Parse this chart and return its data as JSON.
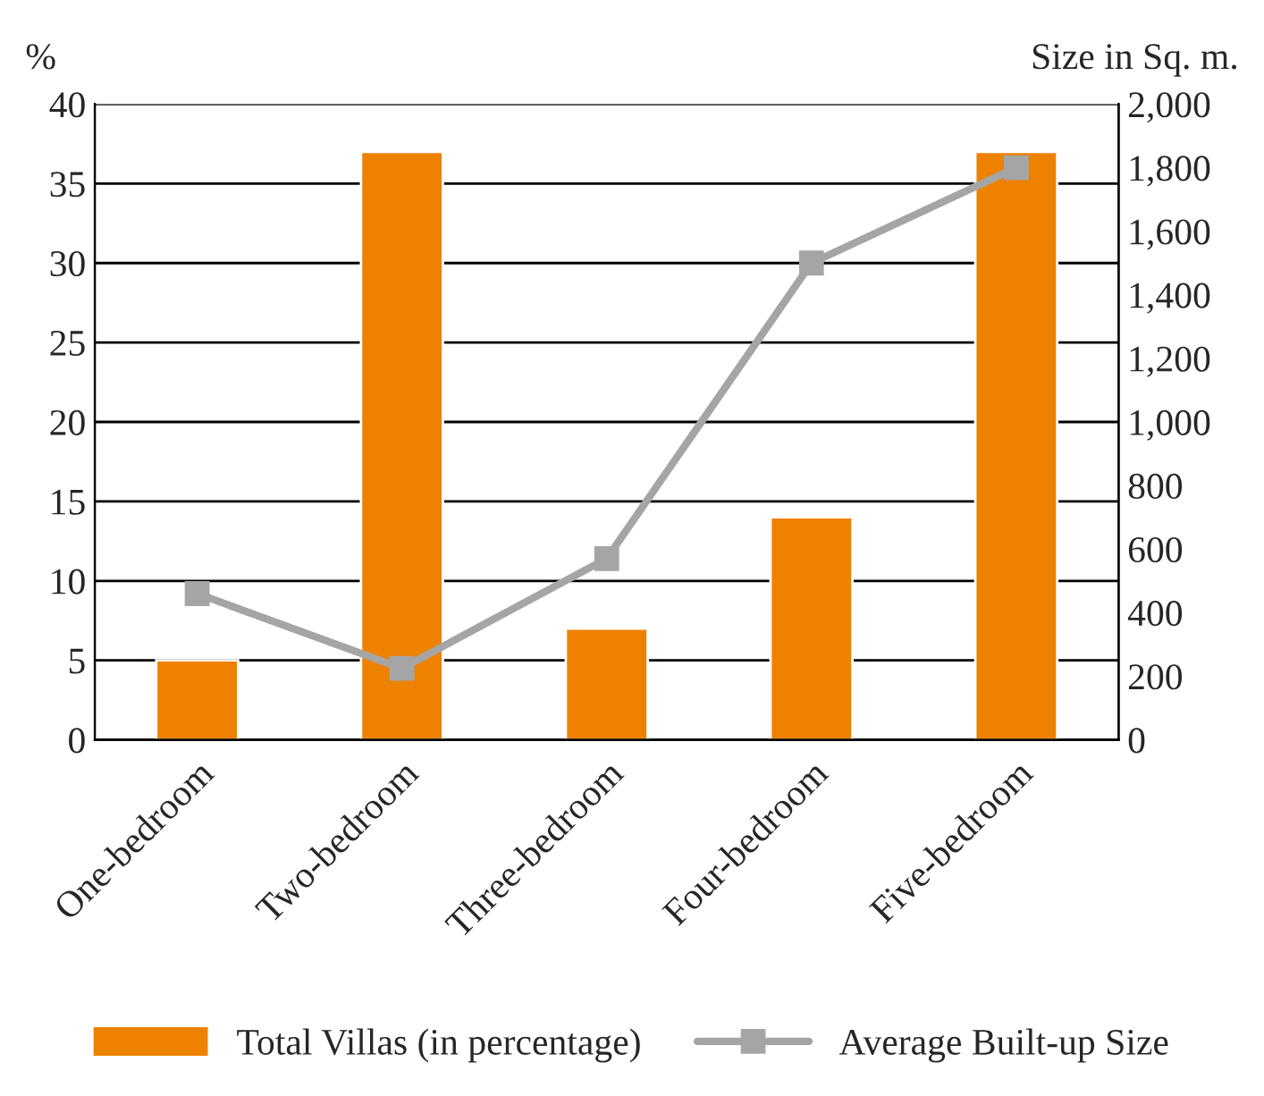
{
  "chart_data": {
    "type": "bar",
    "categories": [
      "One-bedroom",
      "Two-bedroom",
      "Three-bedroom",
      "Four-bedroom",
      "Five-bedroom"
    ],
    "ylabel": "%",
    "y2label": "Size in Sq. m.",
    "series": [
      {
        "name": "Total Villas (in percentage)",
        "color": "#ee8100",
        "values": [
          5,
          37,
          7,
          14,
          37
        ]
      },
      {
        "name": "Average Built-up Size",
        "type": "line",
        "axis": "y2",
        "color": "#a5a5a5",
        "marker": "square",
        "values": [
          460,
          225,
          570,
          1500,
          1800
        ]
      }
    ],
    "ylim": [
      0,
      40
    ],
    "yticks": [
      0,
      5,
      10,
      15,
      20,
      25,
      30,
      35,
      40
    ],
    "y2lim": [
      0,
      2000
    ],
    "y2ticks": [
      {
        "value": 0,
        "label": "0"
      },
      {
        "value": 200,
        "label": "200"
      },
      {
        "value": 400,
        "label": "400"
      },
      {
        "value": 600,
        "label": "600"
      },
      {
        "value": 800,
        "label": "800"
      },
      {
        "value": 1000,
        "label": "1,000"
      },
      {
        "value": 1200,
        "label": "1,200"
      },
      {
        "value": 1400,
        "label": "1,400"
      },
      {
        "value": 1600,
        "label": "1,600"
      },
      {
        "value": 1800,
        "label": "1,800"
      },
      {
        "value": 2000,
        "label": "2,000"
      }
    ],
    "grid": "y",
    "legend": "bottom"
  }
}
